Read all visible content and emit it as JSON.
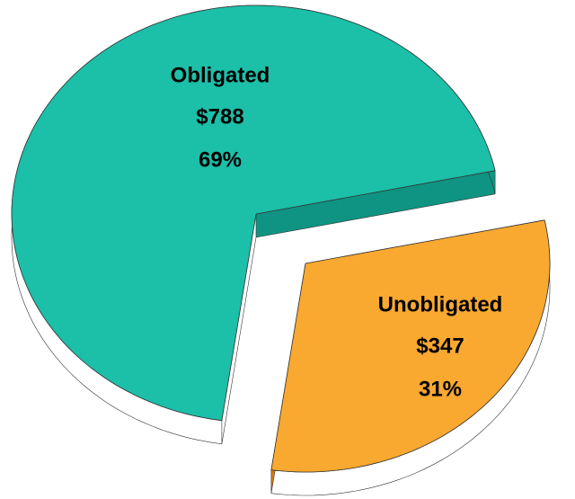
{
  "chart_data": {
    "type": "pie",
    "categories": [
      "Obligated",
      "Unobligated"
    ],
    "values": [
      788,
      347
    ],
    "value_labels": [
      "$788",
      "$347"
    ],
    "percents": [
      69,
      31
    ],
    "percent_labels": [
      "69%",
      "31%"
    ],
    "colors": [
      "#1cbfa8",
      "#f9a830"
    ],
    "side_colors": [
      "#0f9483",
      "#d97d06"
    ]
  }
}
